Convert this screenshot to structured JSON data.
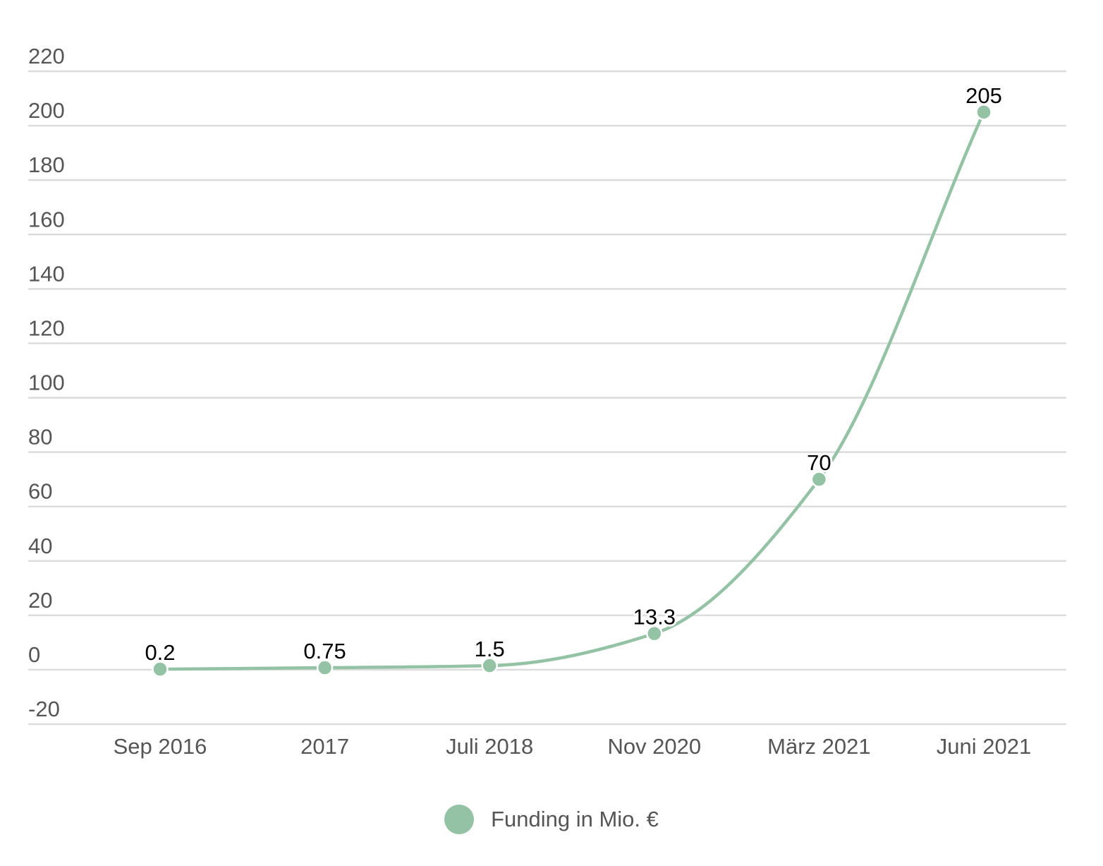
{
  "chart_data": {
    "type": "line",
    "categories": [
      "Sep 2016",
      "2017",
      "Juli 2018",
      "Nov 2020",
      "März 2021",
      "Juni 2021"
    ],
    "series": [
      {
        "name": "Funding in Mio. €",
        "values": [
          0.2,
          0.75,
          1.5,
          13.3,
          70,
          205
        ],
        "data_labels": [
          "0.2",
          "0.75",
          "1.5",
          "13.3",
          "70",
          "205"
        ]
      }
    ],
    "y_ticks": [
      -20,
      0,
      20,
      40,
      60,
      80,
      100,
      120,
      140,
      160,
      180,
      200,
      220
    ],
    "y_tick_labels": [
      "-20",
      "0",
      "20",
      "40",
      "60",
      "80",
      "100",
      "120",
      "140",
      "160",
      "180",
      "200",
      "220"
    ],
    "ylim": [
      -20,
      220
    ],
    "title": "",
    "xlabel": "",
    "ylabel": "",
    "grid": "horizontal",
    "legend_position": "bottom-center",
    "line_style": "smooth",
    "colors": {
      "series": "#93c2a5",
      "grid": "#dcdcdc",
      "tick_text": "#555555",
      "data_label_text": "#000000"
    }
  }
}
